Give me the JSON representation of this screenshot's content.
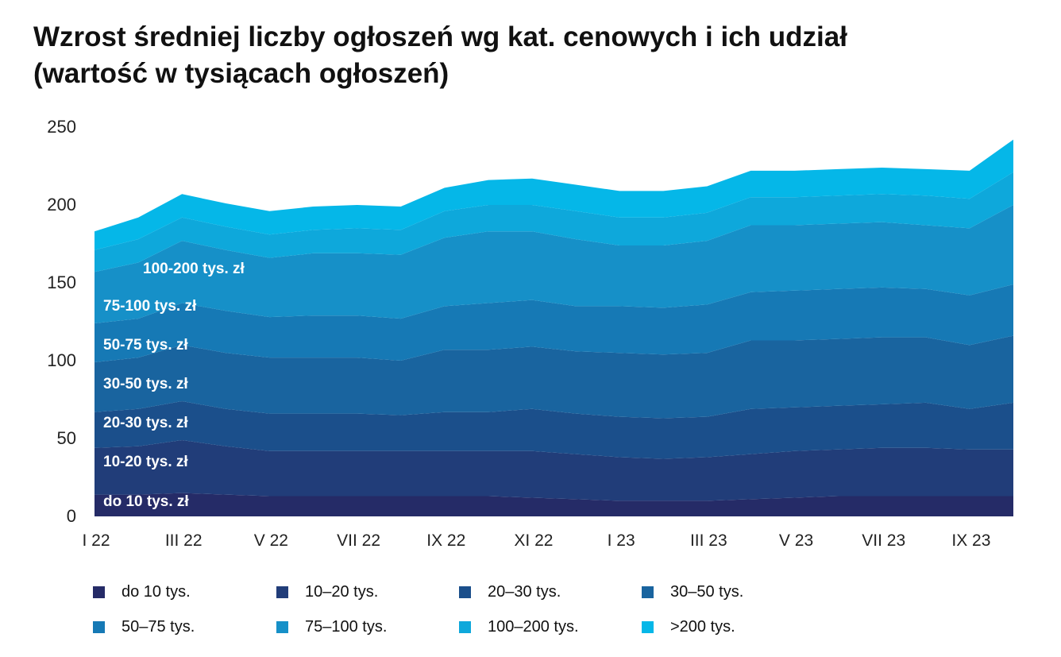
{
  "title": {
    "line1": "Wzrost średniej liczby ogłoszeń wg kat. cenowych i ich udział",
    "line2": "(wartość w tysiącach ogłoszeń)"
  },
  "chart_data": {
    "type": "area",
    "stacked": true,
    "title": "Wzrost średniej liczby ogłoszeń wg kat. cenowych i ich udział (wartość w tysiącach ogłoszeń)",
    "x": [
      "I 22",
      "II 22",
      "III 22",
      "IV 22",
      "V 22",
      "VI 22",
      "VII 22",
      "VIII 22",
      "IX 22",
      "X 22",
      "XI 22",
      "XII 22",
      "I 23",
      "II 23",
      "III 23",
      "IV 23",
      "V 23",
      "VI 23",
      "VII 23",
      "VIII 23",
      "IX 23",
      "X 23"
    ],
    "x_tick_labels": [
      "I 22",
      "III 22",
      "V 22",
      "VII 22",
      "IX 22",
      "XI 22",
      "I 23",
      "III 23",
      "V 23",
      "VII 23",
      "IX 23"
    ],
    "y_ticks": [
      0,
      50,
      100,
      150,
      200,
      250
    ],
    "ylim": [
      0,
      250
    ],
    "grid": false,
    "legend_position": "bottom",
    "series": [
      {
        "name": "do 10 tys.",
        "color": "#252b67",
        "values": [
          14,
          14,
          15,
          14,
          13,
          13,
          13,
          13,
          13,
          13,
          12,
          11,
          10,
          10,
          10,
          11,
          12,
          13,
          13,
          13,
          13,
          13
        ]
      },
      {
        "name": "10–20 tys.",
        "color": "#213d79",
        "values": [
          30,
          31,
          34,
          31,
          29,
          29,
          29,
          29,
          29,
          29,
          30,
          29,
          28,
          27,
          28,
          29,
          30,
          30,
          31,
          31,
          30,
          30
        ]
      },
      {
        "name": "20–30 tys.",
        "color": "#1b4f8b",
        "values": [
          23,
          24,
          25,
          24,
          24,
          24,
          24,
          23,
          25,
          25,
          27,
          26,
          26,
          26,
          26,
          29,
          28,
          28,
          28,
          29,
          26,
          30
        ]
      },
      {
        "name": "30–50 tys.",
        "color": "#19649f",
        "values": [
          32,
          33,
          36,
          36,
          36,
          36,
          36,
          35,
          40,
          40,
          40,
          40,
          41,
          41,
          41,
          44,
          43,
          43,
          43,
          42,
          41,
          43
        ]
      },
      {
        "name": "50–75 tys.",
        "color": "#1679b5",
        "values": [
          25,
          25,
          27,
          27,
          26,
          27,
          27,
          27,
          28,
          30,
          30,
          29,
          30,
          30,
          31,
          31,
          32,
          32,
          32,
          31,
          32,
          33
        ]
      },
      {
        "name": "75–100 tys.",
        "color": "#1690c8",
        "values": [
          33,
          36,
          40,
          39,
          38,
          40,
          40,
          41,
          44,
          46,
          44,
          43,
          39,
          40,
          41,
          43,
          42,
          42,
          42,
          41,
          43,
          51
        ]
      },
      {
        "name": "100–200 tys.",
        "color": "#0ea8db",
        "values": [
          14,
          15,
          15,
          15,
          15,
          15,
          16,
          16,
          17,
          17,
          17,
          18,
          18,
          18,
          18,
          18,
          18,
          18,
          18,
          19,
          19,
          21
        ]
      },
      {
        "name": ">200 tys.",
        "color": "#05b7e8",
        "values": [
          12,
          14,
          15,
          15,
          15,
          15,
          15,
          15,
          15,
          16,
          17,
          17,
          17,
          17,
          17,
          17,
          17,
          17,
          17,
          17,
          18,
          21
        ]
      }
    ],
    "inline_labels": [
      "100-200 tys. zł",
      "75-100 tys. zł",
      "50-75 tys. zł",
      "30-50 tys. zł",
      "20-30 tys. zł",
      "10-20 tys. zł",
      "do 10 tys. zł"
    ]
  },
  "legend": [
    {
      "label": "do 10 tys.",
      "color": "#252b67"
    },
    {
      "label": "10–20 tys.",
      "color": "#213d79"
    },
    {
      "label": "20–30 tys.",
      "color": "#1b4f8b"
    },
    {
      "label": "30–50 tys.",
      "color": "#19649f"
    },
    {
      "label": "50–75 tys.",
      "color": "#1679b5"
    },
    {
      "label": "75–100 tys.",
      "color": "#1690c8"
    },
    {
      "label": "100–200 tys.",
      "color": "#0ea8db"
    },
    {
      "label": ">200 tys.",
      "color": "#05b7e8"
    }
  ]
}
